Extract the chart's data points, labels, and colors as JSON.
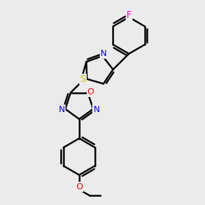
{
  "bg_color": "#ebebeb",
  "bond_color": "#000000",
  "bond_width": 1.8,
  "atom_colors": {
    "N": "#0000ff",
    "O": "#ff0000",
    "S": "#cccc00",
    "F": "#ff00ff",
    "C": "#000000"
  },
  "font_size": 9,
  "fig_size": [
    3.0,
    3.0
  ],
  "dpi": 100
}
